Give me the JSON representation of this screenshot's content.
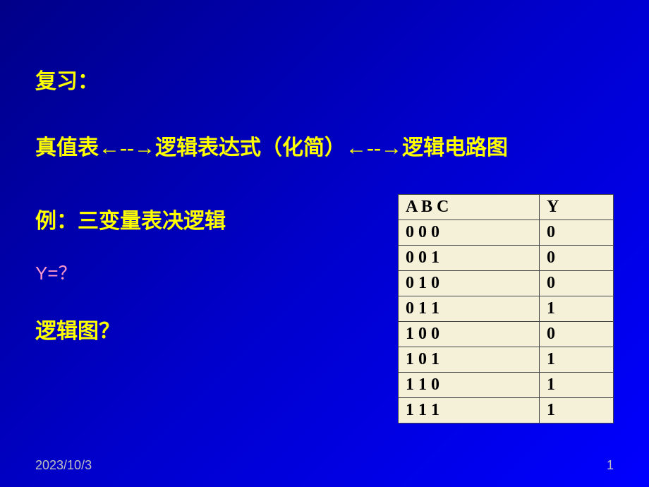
{
  "title": "复习：",
  "subtitle": "真值表←--→逻辑表达式（化简）←--→逻辑电路图",
  "example": "例：三变量表决逻辑",
  "question1": "Y=？",
  "question2": "逻辑图？",
  "table": {
    "header_abc": "A  B  C",
    "header_y": "Y",
    "rows": [
      {
        "abc": "0  0  0",
        "y": "0"
      },
      {
        "abc": "0  0  1",
        "y": "0"
      },
      {
        "abc": "0  1  0",
        "y": "0"
      },
      {
        "abc": "0  1  1",
        "y": "1"
      },
      {
        "abc": "1  0  0",
        "y": "0"
      },
      {
        "abc": "1  0  1",
        "y": "1"
      },
      {
        "abc": "1  1  0",
        "y": "1"
      },
      {
        "abc": "1  1  1",
        "y": "1"
      }
    ]
  },
  "footer": {
    "date": "2023/10/3",
    "page": "1"
  },
  "colors": {
    "bg_gradient_start": "#000088",
    "bg_gradient_mid": "#0000cc",
    "bg_gradient_end": "#0000ff",
    "text_yellow": "#ffff00",
    "text_pink": "#ff99cc",
    "table_bg": "#f5f0d8",
    "table_border": "#444444",
    "footer_text": "#c0c0c0"
  }
}
